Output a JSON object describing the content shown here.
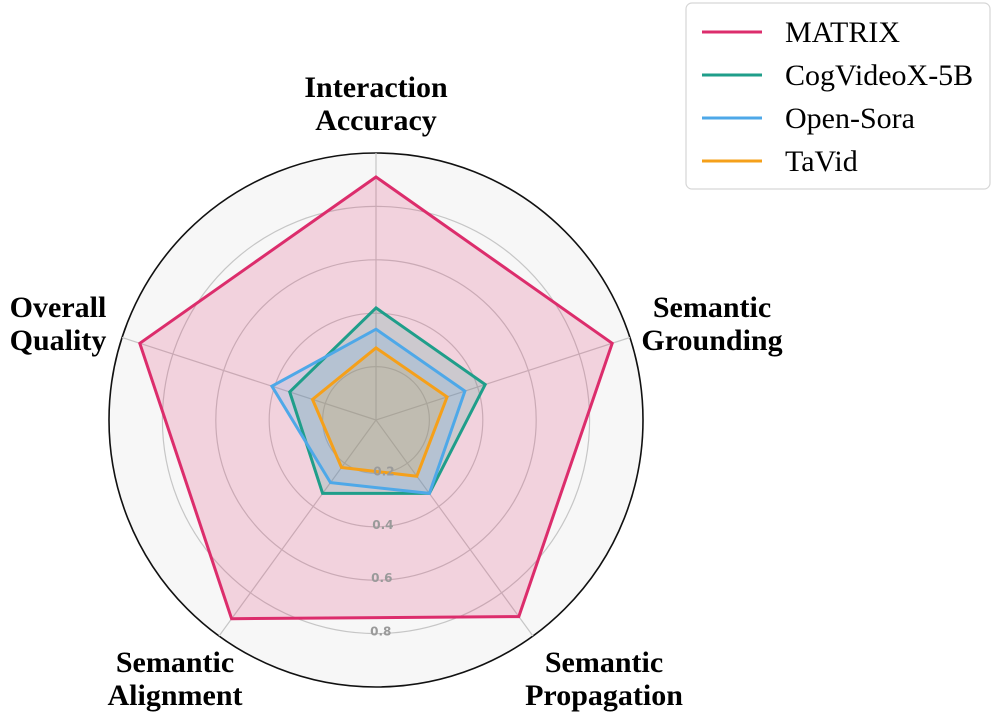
{
  "chart_data": {
    "type": "radar",
    "axes": [
      [
        "Interaction",
        "Accuracy"
      ],
      [
        "Semantic",
        "Grounding"
      ],
      [
        "Semantic",
        "Propagation"
      ],
      [
        "Semantic",
        "Alignment"
      ],
      [
        "Overall",
        "Quality"
      ]
    ],
    "rlim": [
      0,
      1
    ],
    "ticks": [
      0.2,
      0.4,
      0.6,
      0.8
    ],
    "tick_labels": [
      "0.2",
      "0.4",
      "0.6",
      "0.8"
    ],
    "grid": true,
    "legend_position": "top-right",
    "series": [
      {
        "name": "MATRIX",
        "color": "#dc2d6c",
        "values": [
          0.91,
          0.93,
          0.91,
          0.92,
          0.93
        ]
      },
      {
        "name": "CogVideoX-5B",
        "color": "#1f9e8a",
        "values": [
          0.42,
          0.43,
          0.34,
          0.34,
          0.34
        ]
      },
      {
        "name": "Open-Sora",
        "color": "#4ea8e8",
        "values": [
          0.34,
          0.35,
          0.34,
          0.29,
          0.41
        ]
      },
      {
        "name": "TaVid",
        "color": "#f5a01a",
        "values": [
          0.27,
          0.28,
          0.26,
          0.22,
          0.25
        ]
      }
    ]
  }
}
